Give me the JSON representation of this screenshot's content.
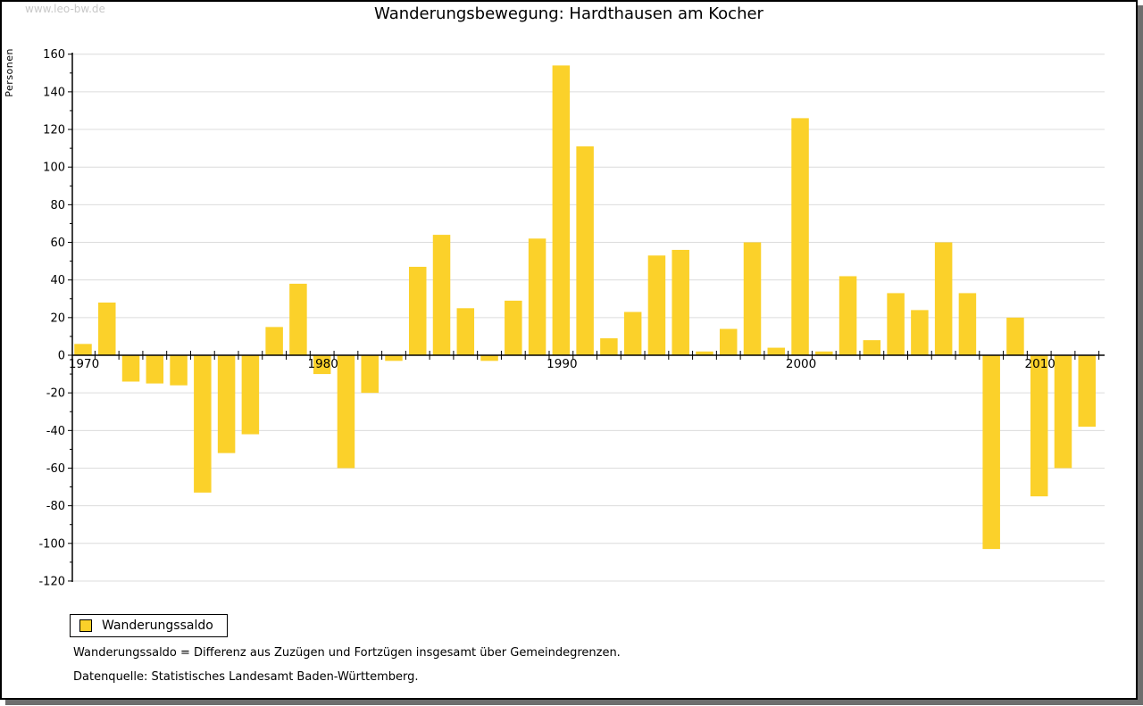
{
  "window": {
    "watermark": "www.leo-bw.de"
  },
  "header": {
    "title": "Wanderungsbewegung: Hardthausen am Kocher"
  },
  "chart_data": {
    "type": "bar",
    "title": "Wanderungsbewegung: Hardthausen am Kocher",
    "ylabel": "Personen",
    "ylim": [
      -120,
      160
    ],
    "ytick_step": 20,
    "ytick_minor_step": 10,
    "grid": "horizontal",
    "legend": [
      "Wanderungssaldo"
    ],
    "legend_position": "bottom-left",
    "xtick_labels": [
      "1970",
      "1980",
      "1990",
      "2000",
      "2010"
    ],
    "categories": [
      1970,
      1971,
      1972,
      1973,
      1974,
      1975,
      1976,
      1977,
      1978,
      1979,
      1980,
      1981,
      1982,
      1983,
      1984,
      1985,
      1986,
      1987,
      1988,
      1989,
      1990,
      1991,
      1992,
      1993,
      1994,
      1995,
      1996,
      1997,
      1998,
      1999,
      2000,
      2001,
      2002,
      2003,
      2004,
      2005,
      2006,
      2007,
      2008,
      2009,
      2010,
      2011,
      2012
    ],
    "values": [
      6,
      28,
      -14,
      -15,
      -16,
      -73,
      -52,
      -42,
      15,
      38,
      -10,
      -60,
      -20,
      -3,
      47,
      64,
      25,
      -3,
      29,
      62,
      154,
      111,
      9,
      23,
      53,
      56,
      2,
      14,
      60,
      4,
      126,
      2,
      42,
      8,
      33,
      24,
      60,
      33,
      -103,
      20,
      -75,
      -60,
      -38
    ],
    "colors": {
      "bar": "#FBD12A",
      "grid": "#DCDCDC",
      "axis": "#000000",
      "watermark": "#C8C8C8",
      "shadow": "#6E6E6E"
    }
  },
  "footnotes": [
    "Wanderungssaldo = Differenz aus Zuzügen und Fortzügen insgesamt über Gemeindegrenzen.",
    "Datenquelle: Statistisches Landesamt Baden-Württemberg."
  ]
}
